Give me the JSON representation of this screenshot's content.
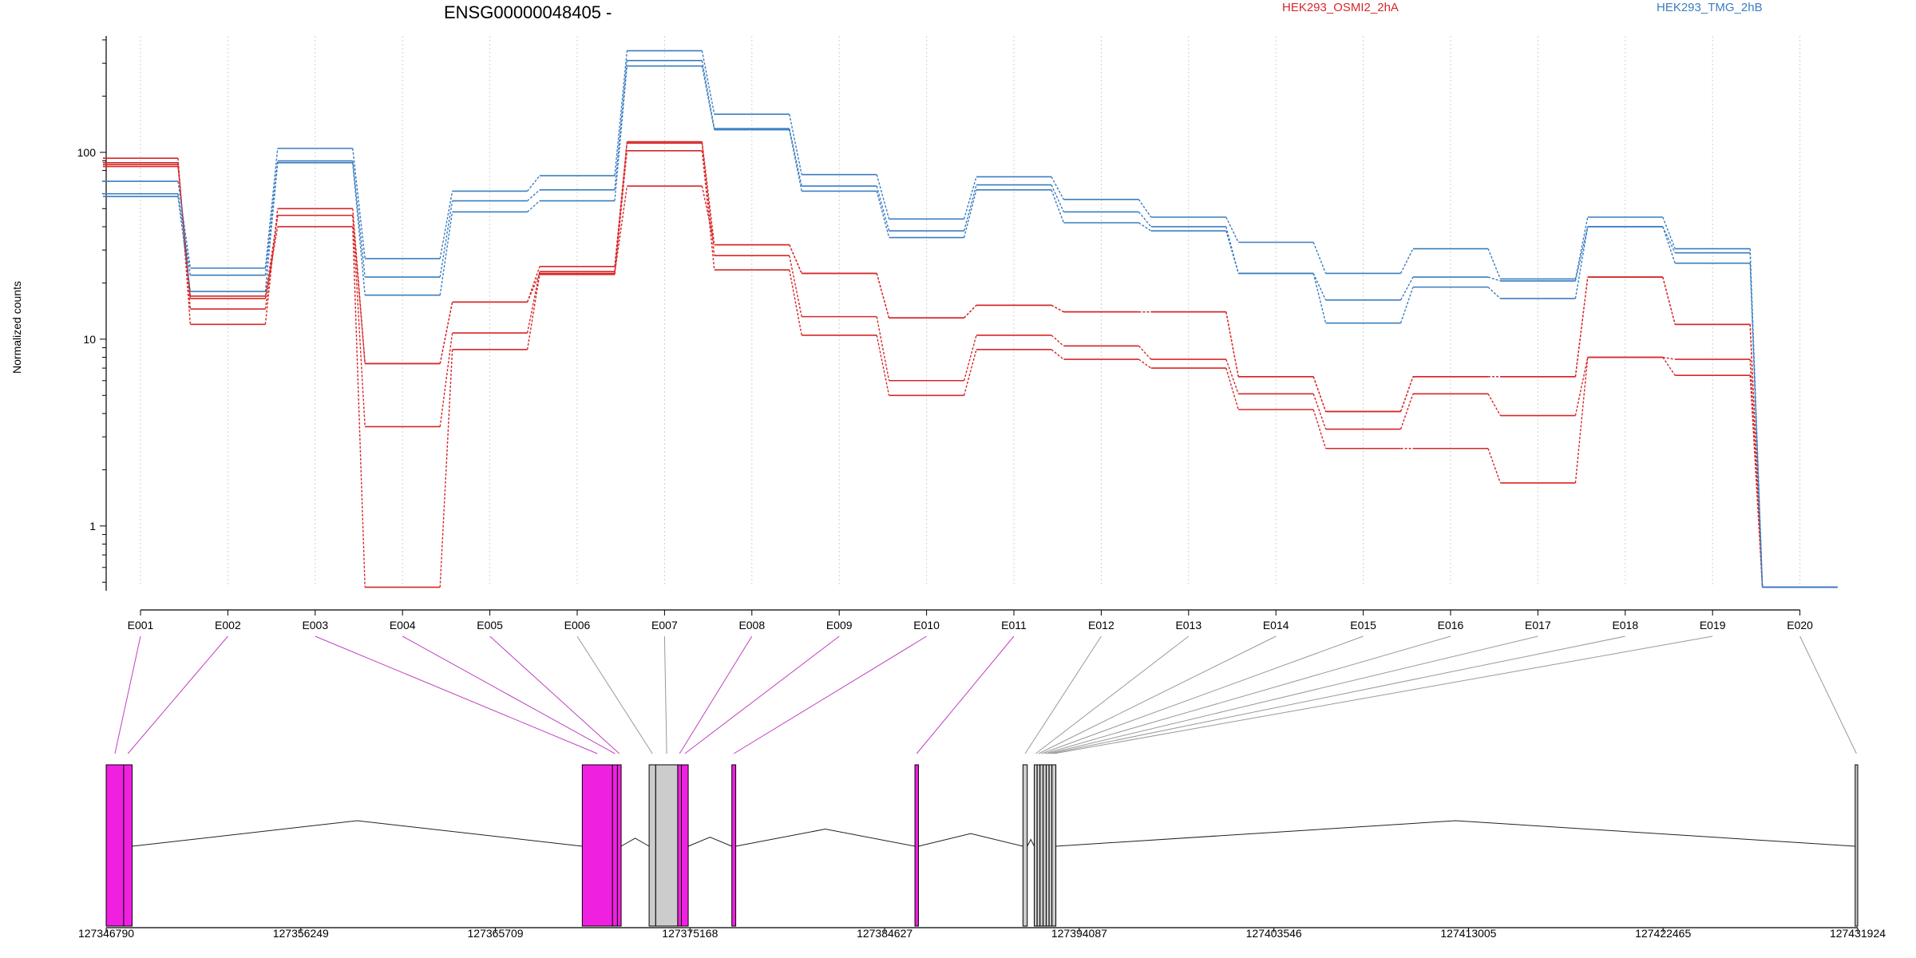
{
  "chart_data": {
    "type": "line",
    "title": "ENSG00000048405 -",
    "ylabel": "Normalized counts",
    "yscale": "log",
    "ylim": [
      0.45,
      420
    ],
    "yticks": [
      1,
      10,
      100
    ],
    "ytick_labels": [
      "1",
      "10",
      "100"
    ],
    "grid": "vertical dotted at each exon",
    "legend_placement": "top-right",
    "categories": [
      "E001",
      "E002",
      "E003",
      "E004",
      "E005",
      "E006",
      "E007",
      "E008",
      "E009",
      "E010",
      "E011",
      "E012",
      "E013",
      "E014",
      "E015",
      "E016",
      "E017",
      "E018",
      "E019",
      "E020"
    ],
    "groups": [
      {
        "name": "HEK293_OSMI2_2hA",
        "color": "#d62728"
      },
      {
        "name": "HEK293_TMG_2hB",
        "color": "#3a7dc1"
      }
    ],
    "series": [
      {
        "group": 0,
        "values": [
          93,
          12,
          50,
          7.4,
          15.8,
          24.5,
          114,
          32,
          22.5,
          13,
          15.2,
          14,
          14,
          6.3,
          4.1,
          6.3,
          6.3,
          21.5,
          12,
          0.47
        ]
      },
      {
        "group": 0,
        "values": [
          88,
          14.5,
          46,
          3.4,
          10.8,
          23,
          112,
          28,
          13.2,
          6,
          10.5,
          9.2,
          7.8,
          5.1,
          3.3,
          5.1,
          3.9,
          8,
          7.8,
          0.47
        ]
      },
      {
        "group": 0,
        "values": [
          86,
          16.5,
          40,
          0.47,
          8.8,
          22.2,
          102,
          23.5,
          10.5,
          5,
          8.8,
          7.8,
          7,
          4.2,
          2.6,
          2.6,
          1.7,
          8,
          6.4,
          0.47
        ]
      },
      {
        "group": 0,
        "values": [
          84,
          17,
          46,
          7.4,
          15.8,
          22.5,
          66,
          32,
          22.5,
          13,
          15.2,
          14,
          14,
          6.3,
          4.1,
          6.3,
          6.3,
          21.5,
          12,
          0.47
        ]
      },
      {
        "group": 1,
        "values": [
          70,
          24,
          105,
          27,
          62,
          75,
          350,
          160,
          76,
          44,
          74,
          56,
          45,
          33,
          22.5,
          30.5,
          21,
          45,
          30.5,
          0.47
        ]
      },
      {
        "group": 1,
        "values": [
          60,
          22,
          90,
          21.5,
          55,
          63,
          310,
          134,
          66,
          38,
          67,
          48,
          40,
          22.5,
          16.2,
          21.5,
          20.5,
          40,
          29,
          0.47
        ]
      },
      {
        "group": 1,
        "values": [
          58,
          18,
          88,
          17.2,
          48,
          55,
          290,
          132,
          62,
          35,
          63,
          42,
          38,
          22.5,
          12.2,
          19,
          16.5,
          40,
          25.5,
          0.47
        ]
      }
    ],
    "gene_model": {
      "coordinate_ticks": [
        "127346790",
        "127356249",
        "127365709",
        "127375168",
        "127384627",
        "127394087",
        "127403546",
        "127413005",
        "127422465",
        "127431924"
      ],
      "exon_colors": {
        "highlighted": "#f020e0",
        "normal": "#cccccc"
      },
      "exons": [
        {
          "id": "E001",
          "start": 127346790,
          "end": 127347640,
          "highlight": true
        },
        {
          "id": "E002",
          "start": 127347640,
          "end": 127348050,
          "highlight": true
        },
        {
          "id": "E003",
          "start": 127369930,
          "end": 127371400,
          "highlight": true
        },
        {
          "id": "E004",
          "start": 127371400,
          "end": 127371640,
          "highlight": true
        },
        {
          "id": "E005",
          "start": 127371640,
          "end": 127371820,
          "highlight": true
        },
        {
          "id": "E006",
          "start": 127373180,
          "end": 127373500,
          "highlight": false
        },
        {
          "id": "E007",
          "start": 127373500,
          "end": 127374570,
          "highlight": false
        },
        {
          "id": "E008",
          "start": 127374570,
          "end": 127374750,
          "highlight": true
        },
        {
          "id": "E009",
          "start": 127374750,
          "end": 127375080,
          "highlight": true
        },
        {
          "id": "E010",
          "start": 127377200,
          "end": 127377390,
          "highlight": true
        },
        {
          "id": "E011",
          "start": 127386100,
          "end": 127386270,
          "highlight": true
        },
        {
          "id": "E012",
          "start": 127391350,
          "end": 127391560,
          "highlight": false
        },
        {
          "id": "E013",
          "start": 127391900,
          "end": 127392040,
          "highlight": false
        },
        {
          "id": "E014",
          "start": 127392040,
          "end": 127392180,
          "highlight": false
        },
        {
          "id": "E015",
          "start": 127392180,
          "end": 127392330,
          "highlight": false
        },
        {
          "id": "E016",
          "start": 127392330,
          "end": 127392480,
          "highlight": false
        },
        {
          "id": "E017",
          "start": 127392480,
          "end": 127392620,
          "highlight": false
        },
        {
          "id": "E018",
          "start": 127392620,
          "end": 127392760,
          "highlight": false
        },
        {
          "id": "E019",
          "start": 127392760,
          "end": 127392950,
          "highlight": false
        },
        {
          "id": "E020",
          "start": 127431800,
          "end": 127431924,
          "highlight": false
        }
      ]
    }
  }
}
